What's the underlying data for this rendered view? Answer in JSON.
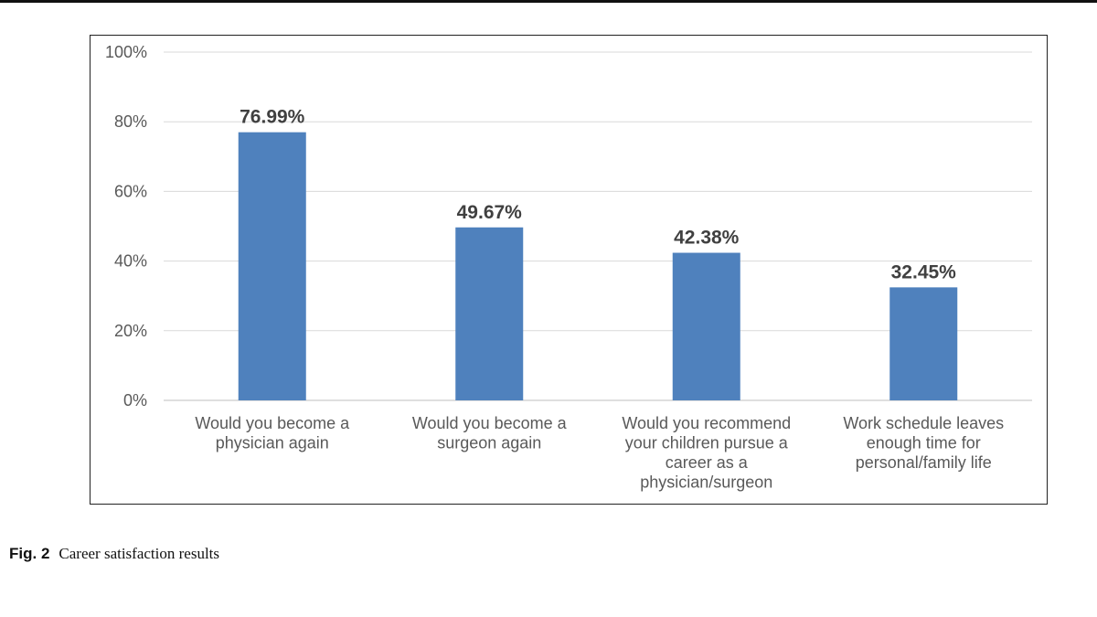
{
  "figure": {
    "label": "Fig. 2",
    "caption": "Career satisfaction results"
  },
  "chart_data": {
    "type": "bar",
    "title": "",
    "xlabel": "",
    "ylabel": "",
    "ylim": [
      0,
      100
    ],
    "yticks": [
      "0%",
      "20%",
      "40%",
      "60%",
      "80%",
      "100%"
    ],
    "ytick_values": [
      0,
      20,
      40,
      60,
      80,
      100
    ],
    "grid": true,
    "bar_color": "#4f81bd",
    "categories": [
      [
        "Would you become a",
        "physician again"
      ],
      [
        "Would you become a",
        "surgeon again"
      ],
      [
        "Would you recommend",
        "your children pursue a",
        "career as a",
        "physician/surgeon"
      ],
      [
        "Work schedule leaves",
        "enough time for",
        "personal/family life"
      ]
    ],
    "values": [
      76.99,
      49.67,
      42.38,
      32.45
    ],
    "data_labels": [
      "76.99%",
      "49.67%",
      "42.38%",
      "32.45%"
    ]
  }
}
